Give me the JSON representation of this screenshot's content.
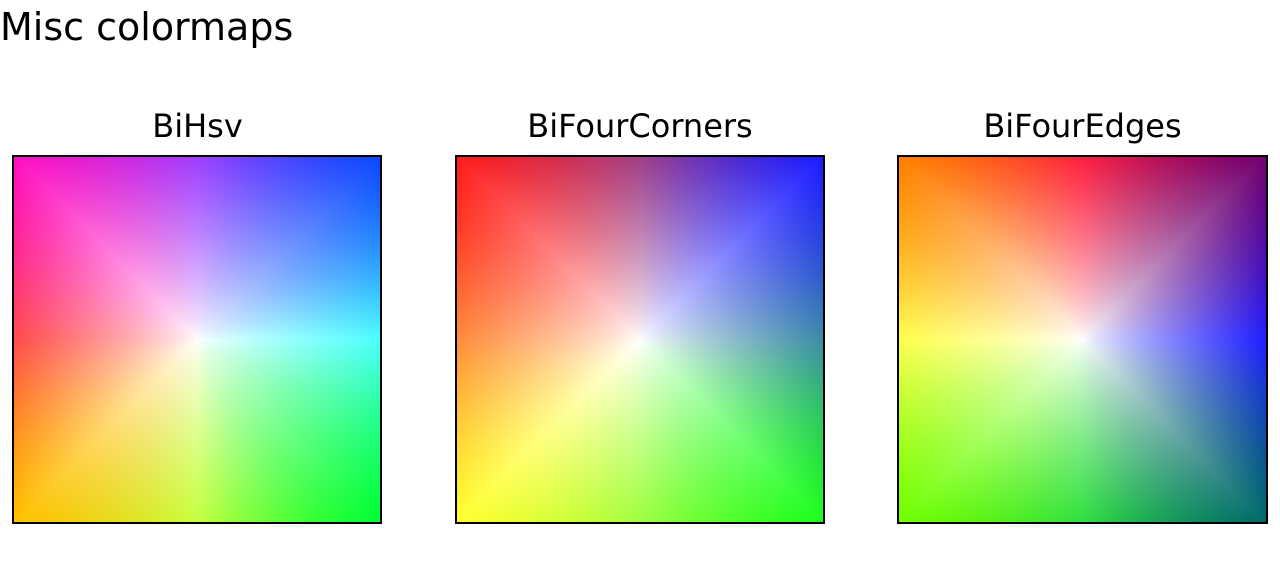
{
  "figure": {
    "title": "Misc colormaps"
  },
  "chart_data": [
    {
      "type": "heatmap",
      "title": "BiHsv",
      "colors": {
        "center": "#ffffff",
        "top": "#9f3fff",
        "top_right": "#0c48ff",
        "right": "#4cffff",
        "bottom_right": "#00ff30",
        "bottom": "#c8ff40",
        "bottom_left": "#ffc000",
        "left": "#ff4c4c",
        "top_left": "#ff10c0"
      }
    },
    {
      "type": "heatmap",
      "title": "BiFourCorners",
      "colors": {
        "center": "#ffffff",
        "top": "#a04088",
        "top_right": "#1c1cff",
        "right": "#3c8ca8",
        "bottom_right": "#1cff1c",
        "bottom": "#a0ff40",
        "bottom_left": "#ffff30",
        "left": "#ff8c3c",
        "top_left": "#ff1c1c"
      }
    },
    {
      "type": "heatmap",
      "title": "BiFourEdges",
      "colors": {
        "center": "#ffffff",
        "top": "#ff2040",
        "top_right": "#700070",
        "right": "#2020ff",
        "bottom_right": "#006a6a",
        "bottom": "#30e040",
        "bottom_left": "#70ff00",
        "left": "#ffff50",
        "top_left": "#ff8000"
      }
    }
  ]
}
